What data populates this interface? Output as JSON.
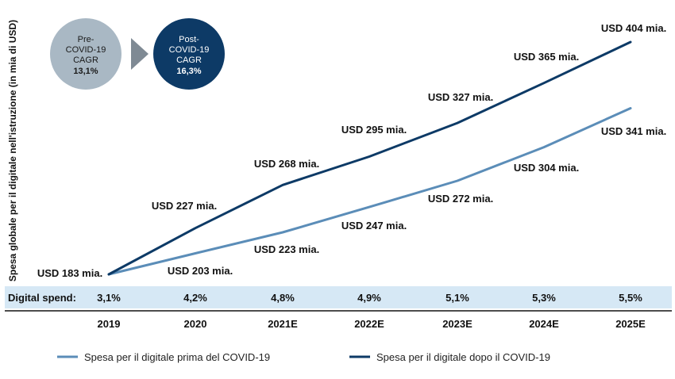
{
  "chart_data": {
    "type": "line",
    "ylabel": "Spesa globale per il digitale nell'istruzione (in mia di USD)",
    "categories": [
      "2019",
      "2020",
      "2021E",
      "2022E",
      "2023E",
      "2024E",
      "2025E"
    ],
    "series": [
      {
        "name": "Spesa per il digitale prima del COVID-19",
        "values": [
          183,
          203,
          223,
          247,
          272,
          304,
          341
        ],
        "labels": [
          "USD 183 mia.",
          "USD 203 mia.",
          "USD 223 mia.",
          "USD 247 mia.",
          "USD 272 mia.",
          "USD 304 mia.",
          "USD 341 mia."
        ],
        "color": "#5b8db8"
      },
      {
        "name": "Spesa per il digitale dopo il COVID-19",
        "values": [
          183,
          227,
          268,
          295,
          327,
          365,
          404
        ],
        "labels": [
          "USD 183 mia.",
          "USD 227 mia.",
          "USD 268 mia.",
          "USD 295 mia.",
          "USD 327 mia.",
          "USD 365 mia.",
          "USD 404 mia."
        ],
        "color": "#0d3a66"
      }
    ],
    "digital_spend": {
      "label": "Digital spend:",
      "values": [
        "3,1%",
        "4,2%",
        "4,8%",
        "4,9%",
        "5,1%",
        "5,3%",
        "5,5%"
      ]
    },
    "cagr": {
      "pre": {
        "lines": [
          "Pre-",
          "COVID-19",
          "CAGR"
        ],
        "value": "13,1%",
        "color": "#a9b8c4"
      },
      "post": {
        "lines": [
          "Post-",
          "COVID-19",
          "CAGR"
        ],
        "value": "16,3%",
        "color": "#0d3a66"
      },
      "arrow_color": "#7f8a94"
    },
    "band_color": "#d6e8f5"
  }
}
